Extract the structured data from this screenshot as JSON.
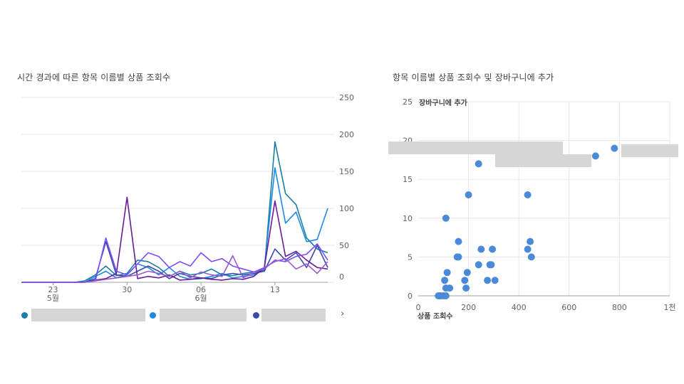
{
  "left_chart": {
    "title": "시간 경과에 따른 항목 이름별 상품 조회수",
    "legend_next": "›"
  },
  "right_chart": {
    "title": "항목 이름별 상품 조회수 및 장바구니에 추가"
  },
  "colors": {
    "series": [
      "#1a7fa0",
      "#1e88e5",
      "#3949ab",
      "#6a1b9a",
      "#7c4dff",
      "#9b59d0"
    ],
    "scatter": "#4a8ad8",
    "grid": "#e6e6e6",
    "axis_text": "#5f6368",
    "redaction": "#d6d6d6"
  },
  "chart_data": [
    {
      "type": "line",
      "title": "시간 경과에 따른 항목 이름별 상품 조회수",
      "ylim": [
        0,
        250
      ],
      "y_ticks": [
        "250",
        "200",
        "150",
        "100",
        "50",
        "0"
      ],
      "x_ticks": [
        {
          "day": "23",
          "month": "5월",
          "index": 3
        },
        {
          "day": "30",
          "month": "",
          "index": 10
        },
        {
          "day": "06",
          "month": "6월",
          "index": 17
        },
        {
          "day": "13",
          "month": "",
          "index": 24
        }
      ],
      "x_count": 30,
      "series": [
        {
          "name": "",
          "values": [
            0,
            0,
            0,
            0,
            0,
            0,
            2,
            10,
            22,
            9,
            12,
            30,
            28,
            20,
            8,
            15,
            10,
            12,
            18,
            10,
            9,
            12,
            14,
            16,
            190,
            120,
            105,
            60,
            45,
            40
          ]
        },
        {
          "name": "",
          "values": [
            0,
            0,
            0,
            0,
            0,
            0,
            0,
            8,
            15,
            6,
            10,
            25,
            20,
            10,
            20,
            8,
            4,
            5,
            8,
            12,
            6,
            8,
            10,
            20,
            155,
            80,
            95,
            55,
            58,
            100
          ]
        },
        {
          "name": "",
          "values": [
            0,
            0,
            0,
            0,
            0,
            0,
            0,
            5,
            55,
            10,
            8,
            15,
            22,
            15,
            5,
            12,
            8,
            6,
            5,
            10,
            12,
            10,
            12,
            15,
            45,
            30,
            40,
            20,
            50,
            20
          ]
        },
        {
          "name": "",
          "values": [
            0,
            0,
            0,
            0,
            0,
            0,
            0,
            3,
            5,
            12,
            115,
            5,
            8,
            6,
            10,
            3,
            4,
            6,
            4,
            3,
            5,
            4,
            8,
            20,
            110,
            35,
            42,
            30,
            20,
            18
          ]
        },
        {
          "name": "",
          "values": [
            0,
            0,
            0,
            0,
            0,
            0,
            0,
            2,
            60,
            15,
            10,
            25,
            40,
            35,
            20,
            28,
            22,
            40,
            28,
            32,
            22,
            18,
            14,
            18,
            30,
            28,
            35,
            38,
            52,
            30
          ]
        },
        {
          "name": "",
          "values": [
            0,
            0,
            0,
            0,
            0,
            0,
            0,
            2,
            4,
            6,
            8,
            10,
            15,
            12,
            8,
            15,
            6,
            14,
            10,
            8,
            36,
            6,
            14,
            20,
            28,
            32,
            18,
            25,
            12,
            28
          ]
        }
      ]
    },
    {
      "type": "scatter",
      "title": "항목 이름별 상품 조회수 및 장바구니에 추가",
      "xlabel": "상품 조회수",
      "ylabel": "장바구니에 추가",
      "xlim": [
        0,
        1000
      ],
      "ylim": [
        0,
        25
      ],
      "x_ticks": [
        "0",
        "200",
        "400",
        "600",
        "800",
        "1천"
      ],
      "y_ticks": [
        "25",
        "20",
        "15",
        "10",
        "5",
        "0"
      ],
      "points": [
        {
          "x": 80,
          "y": 0
        },
        {
          "x": 85,
          "y": 0
        },
        {
          "x": 90,
          "y": 0
        },
        {
          "x": 100,
          "y": 0
        },
        {
          "x": 110,
          "y": 0
        },
        {
          "x": 110,
          "y": 1
        },
        {
          "x": 125,
          "y": 1
        },
        {
          "x": 105,
          "y": 2
        },
        {
          "x": 115,
          "y": 3
        },
        {
          "x": 190,
          "y": 1
        },
        {
          "x": 185,
          "y": 2
        },
        {
          "x": 195,
          "y": 3
        },
        {
          "x": 155,
          "y": 5
        },
        {
          "x": 160,
          "y": 5
        },
        {
          "x": 160,
          "y": 7
        },
        {
          "x": 110,
          "y": 10
        },
        {
          "x": 200,
          "y": 13
        },
        {
          "x": 240,
          "y": 17
        },
        {
          "x": 240,
          "y": 4
        },
        {
          "x": 250,
          "y": 6
        },
        {
          "x": 285,
          "y": 4
        },
        {
          "x": 290,
          "y": 4
        },
        {
          "x": 295,
          "y": 6
        },
        {
          "x": 275,
          "y": 2
        },
        {
          "x": 305,
          "y": 2
        },
        {
          "x": 435,
          "y": 13
        },
        {
          "x": 435,
          "y": 6
        },
        {
          "x": 445,
          "y": 7
        },
        {
          "x": 450,
          "y": 5
        },
        {
          "x": 705,
          "y": 18
        },
        {
          "x": 780,
          "y": 19
        }
      ]
    }
  ]
}
